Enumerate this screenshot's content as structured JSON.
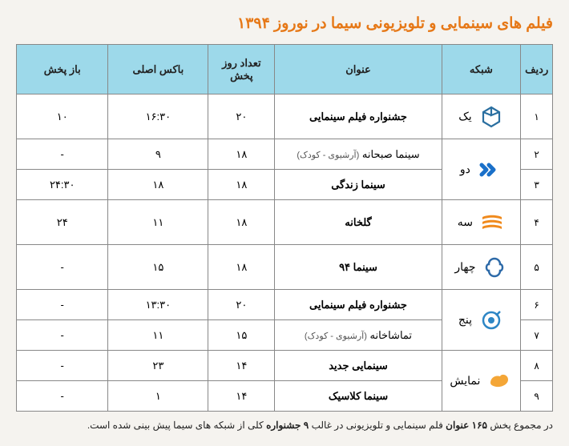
{
  "title": "فیلم های سینمایی و تلویزیونی سیما در نوروز ۱۳۹۴",
  "headers": {
    "idx": "ردیف",
    "network": "شبکه",
    "program_title": "عنوان",
    "days": "تعداد روز پخش",
    "main_box": "باکس اصلی",
    "replay": "باز پخش"
  },
  "networks": [
    {
      "id": "yek",
      "label": "یک",
      "icon_color": "#2a6fa0",
      "rowspan": 1
    },
    {
      "id": "do",
      "label": "دو",
      "icon_color": "#1a70c9",
      "rowspan": 2
    },
    {
      "id": "se",
      "label": "سه",
      "icon_color": "#f08a1d",
      "rowspan": 1
    },
    {
      "id": "chahar",
      "label": "چهار",
      "icon_color": "#2d6aa8",
      "rowspan": 1
    },
    {
      "id": "panj",
      "label": "پنج",
      "icon_color": "#2d86c5",
      "rowspan": 2
    },
    {
      "id": "namayesh",
      "label": "نمایش",
      "icon_color": "#f4a637",
      "rowspan": 2
    }
  ],
  "rows": [
    {
      "idx": "۱",
      "net": 0,
      "title": "جشنواره فیلم سینمایی",
      "title_bold": true,
      "sub": "",
      "days": "۲۰",
      "box": "۱۶:۳۰",
      "replay": "۱۰",
      "tall": true
    },
    {
      "idx": "۲",
      "net": 1,
      "title": "سینما صبحانه",
      "title_bold": false,
      "sub": "(آرشیوی - کودک)",
      "days": "۱۸",
      "box": "۹",
      "replay": "-"
    },
    {
      "idx": "۳",
      "net": 1,
      "title": "سینما زندگی",
      "title_bold": true,
      "sub": "",
      "days": "۱۸",
      "box": "۱۸",
      "replay": "۲۴:۳۰"
    },
    {
      "idx": "۴",
      "net": 2,
      "title": "گلخانه",
      "title_bold": true,
      "sub": "",
      "days": "۱۸",
      "box": "۱۱",
      "replay": "۲۴",
      "tall": true
    },
    {
      "idx": "۵",
      "net": 3,
      "title": "سینما ۹۴",
      "title_bold": true,
      "sub": "",
      "days": "۱۸",
      "box": "۱۵",
      "replay": "-",
      "tall": true
    },
    {
      "idx": "۶",
      "net": 4,
      "title": "جشنواره فیلم سینمایی",
      "title_bold": true,
      "sub": "",
      "days": "۲۰",
      "box": "۱۳:۳۰",
      "replay": "-"
    },
    {
      "idx": "۷",
      "net": 4,
      "title": "تماشاخانه",
      "title_bold": false,
      "sub": "(آرشیوی - کودک)",
      "days": "۱۵",
      "box": "۱۱",
      "replay": "-"
    },
    {
      "idx": "۸",
      "net": 5,
      "title": "سینمایی جدید",
      "title_bold": true,
      "sub": "",
      "days": "۱۴",
      "box": "۲۳",
      "replay": "-"
    },
    {
      "idx": "۹",
      "net": 5,
      "title": "سینما کلاسیک",
      "title_bold": true,
      "sub": "",
      "days": "۱۴",
      "box": "۱",
      "replay": "-"
    }
  ],
  "footer": {
    "p1": "در مجموع پخش",
    "p2": "۱۶۵ عنوان",
    "p3": "فلم سینمایی و تلویزیونی در غالب",
    "p4": "۹ جشنواره",
    "p5": "کلی از شبکه های سیما پیش بینی شده است."
  },
  "icons_svg": {
    "yek": "<svg viewBox='0 0 32 32'><path d='M16 4 L26 10 L26 22 L16 28 L6 22 L6 10 Z' fill='none' stroke='CLR' stroke-width='2.2'/><path d='M16 4 L16 14 L26 10' fill='none' stroke='CLR' stroke-width='2.2'/><path d='M16 14 L6 10' fill='none' stroke='CLR' stroke-width='2.2'/></svg>",
    "do": "<svg viewBox='0 0 32 32'><path d='M6 10 L12 16 L6 22' fill='none' stroke='CLR' stroke-width='5' stroke-linecap='round' stroke-linejoin='round'/><path d='M15 10 L21 16 L15 22' fill='none' stroke='CLR' stroke-width='5' stroke-linecap='round' stroke-linejoin='round'/></svg>",
    "se": "<svg viewBox='0 0 32 32'><path d='M4 9 C10 6 22 6 28 9 L28 12 C22 9 10 9 4 12 Z' fill='CLR'/><path d='M4 15 C10 12 22 12 28 15 L28 18 C22 15 10 15 4 18 Z' fill='CLR'/><path d='M4 21 C10 18 22 18 28 21 L28 24 C22 21 10 21 4 24 Z' fill='CLR'/></svg>",
    "chahar": "<svg viewBox='0 0 32 32'><path d='M16 5 C20 5 23 8 23 12 C27 12 27 20 23 20 C23 24 20 27 16 27 C12 27 9 24 9 20 C5 20 5 12 9 12 C9 8 12 5 16 5 Z' fill='none' stroke='CLR' stroke-width='2.5'/></svg>",
    "panj": "<svg viewBox='0 0 32 32'><circle cx='16' cy='16' r='10' fill='none' stroke='CLR' stroke-width='2.5'/><circle cx='16' cy='16' r='4' fill='CLR'/><path d='M22 10 L27 5' stroke='CLR' stroke-width='2.5'/></svg>",
    "namayesh": "<svg viewBox='0 0 32 32'><path d='M5 18 C5 12 11 8 17 10 C19 6 27 8 27 14 C27 20 19 24 12 23 C8 22 5 21 5 18 Z' fill='CLR'/></svg>"
  }
}
